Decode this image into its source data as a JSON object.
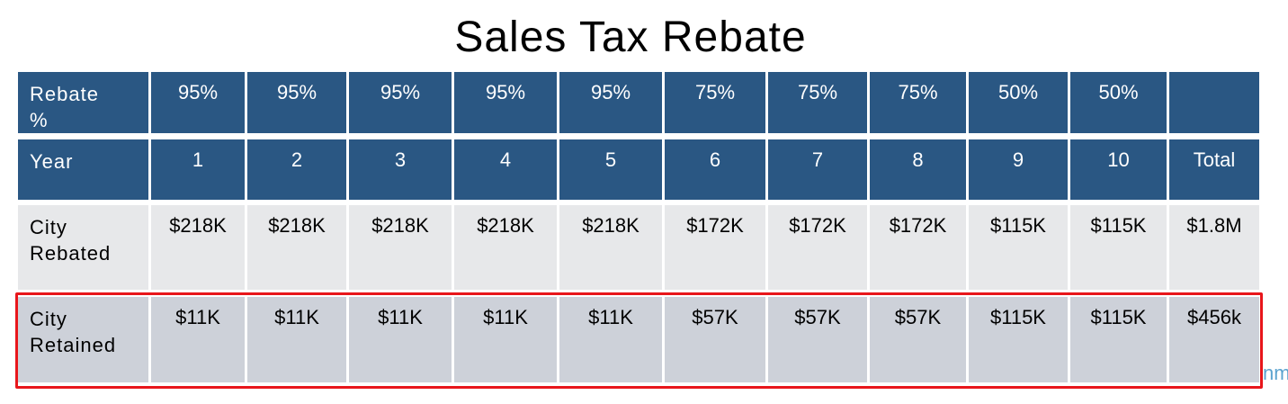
{
  "title": "Sales Tax Rebate",
  "table": {
    "rows": [
      [
        "Rebate %",
        "95%",
        "95%",
        "95%",
        "95%",
        "95%",
        "75%",
        "75%",
        "75%",
        "50%",
        "50%"
      ],
      [
        "Year",
        "1",
        "2",
        "3",
        "4",
        "5",
        "6",
        "7",
        "8",
        "9",
        "10",
        "Total"
      ],
      [
        "City Rebated",
        "$218K",
        "$218K",
        "$218K",
        "$218K",
        "$218K",
        "$172K",
        "$172K",
        "$172K",
        "$115K",
        "$115K",
        "$1.8M"
      ],
      [
        "City Retained",
        "$11K",
        "$11K",
        "$11K",
        "$11K",
        "$11K",
        "$57K",
        "$57K",
        "$57K",
        "$115K",
        "$115K",
        "$456k"
      ]
    ]
  },
  "footer_fragment": "nm"
}
